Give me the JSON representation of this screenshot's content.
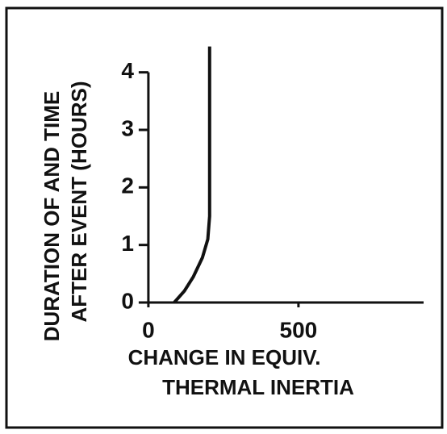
{
  "chart_data": {
    "type": "line",
    "xlabel": [
      "CHANGE IN EQUIV.",
      "THERMAL INERTIA"
    ],
    "ylabel": [
      "DURATION OF AND TIME",
      "AFTER EVENT (HOURS)"
    ],
    "x": [
      86,
      120,
      150,
      180,
      198,
      204,
      204
    ],
    "series": [
      {
        "color": "#111111",
        "values": [
          0,
          0.2,
          0.45,
          0.78,
          1.1,
          1.5,
          4.45
        ]
      }
    ],
    "xlim": [
      -32,
      917
    ],
    "ylim": [
      0,
      4.5
    ],
    "xticks": [
      0,
      500
    ],
    "yticks": [
      0,
      1,
      2,
      3,
      4
    ]
  }
}
